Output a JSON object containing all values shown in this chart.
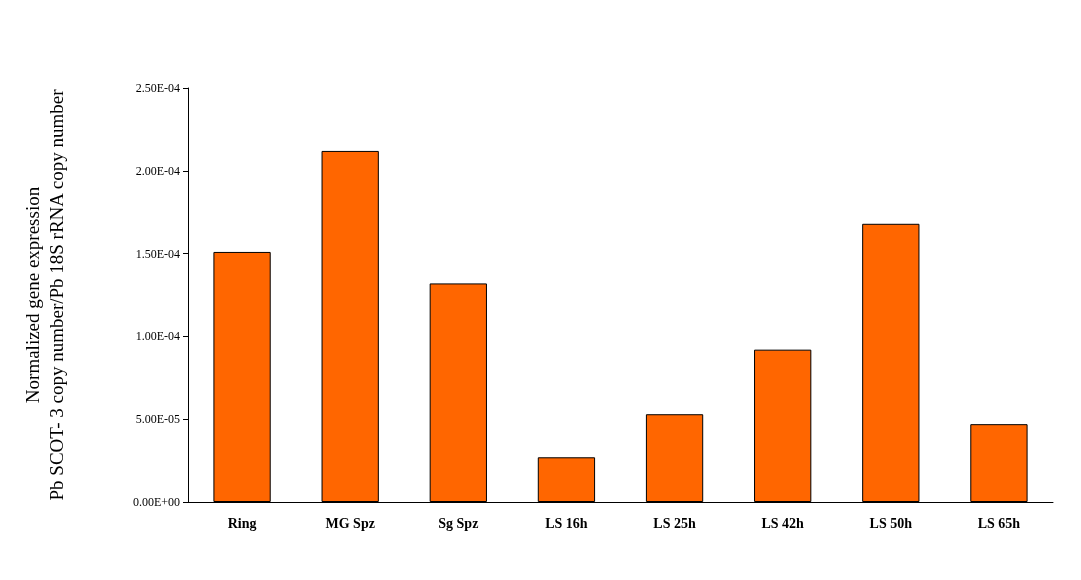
{
  "chart_data": {
    "type": "bar",
    "ylabel": "Normalized gene expression\nPb SCOT- 3 copy number/Pb 18S rRNA copy number",
    "categories": [
      "Ring",
      "MG Spz",
      "Sg Spz",
      "LS 16h",
      "LS 25h",
      "LS 42h",
      "LS 50h",
      "LS 65h"
    ],
    "values": [
      0.000151,
      0.000212,
      0.000132,
      2.7e-05,
      5.3e-05,
      9.2e-05,
      0.000168,
      4.7e-05
    ],
    "color": "#ff6600",
    "ylim": [
      0,
      0.00025
    ],
    "yticks": [
      {
        "value": 0,
        "label": "0.00E+00"
      },
      {
        "value": 5e-05,
        "label": "5.00E-05"
      },
      {
        "value": 0.0001,
        "label": "1.00E-04"
      },
      {
        "value": 0.00015,
        "label": "1.50E-04"
      },
      {
        "value": 0.0002,
        "label": "2.00E-04"
      },
      {
        "value": 0.00025,
        "label": "2.50E-04"
      }
    ],
    "grid": false
  }
}
